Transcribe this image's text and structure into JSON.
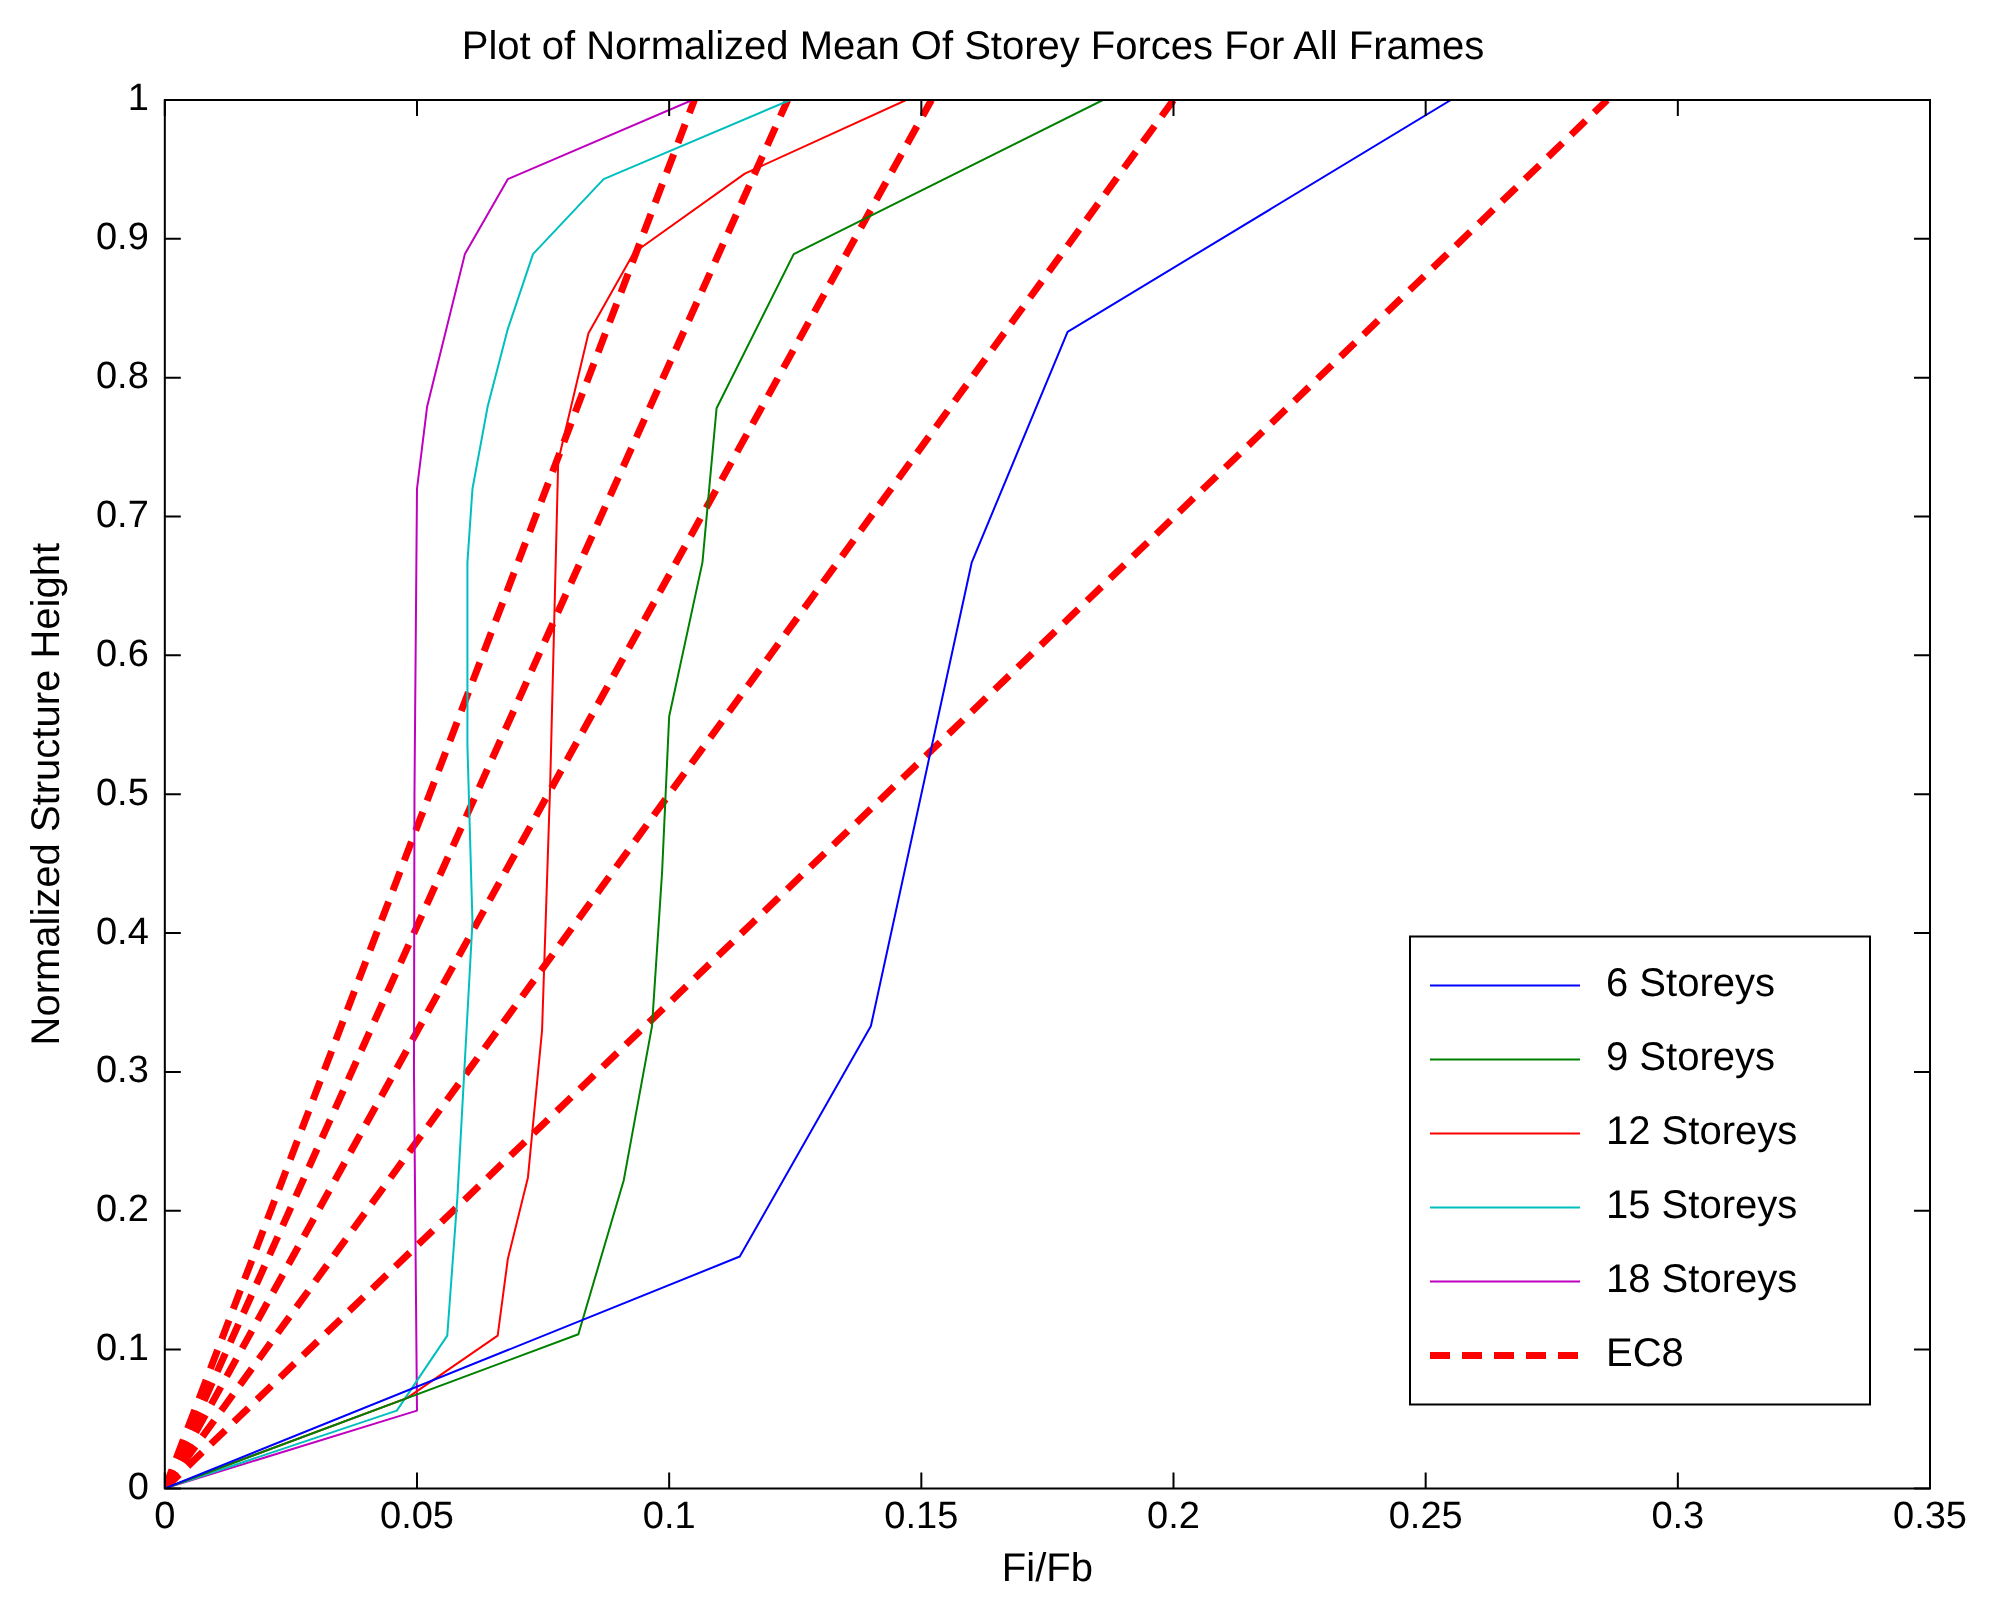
{
  "chart_data": {
    "type": "line",
    "title": "Plot of Normalized Mean Of Storey Forces For All Frames",
    "xlabel": "Fi/Fb",
    "ylabel": "Normalized Structure Height",
    "xlim": [
      0,
      0.35
    ],
    "xticks": [
      0,
      0.05,
      0.1,
      0.15,
      0.2,
      0.25,
      0.3,
      0.35
    ],
    "ylim": [
      0,
      1
    ],
    "yticks": [
      0,
      0.1,
      0.2,
      0.3,
      0.4,
      0.5,
      0.6,
      0.7,
      0.8,
      0.9,
      1
    ],
    "grid": false,
    "legend": "bottom right",
    "marker": "none",
    "series": [
      {
        "name": "6 Storeys",
        "color": "#0000ff",
        "x": [
          0,
          0.114,
          0.14,
          0.16,
          0.179,
          0.255
        ],
        "values": [
          0,
          0.167,
          0.333,
          0.667,
          0.833,
          1
        ]
      },
      {
        "name": "9 Storeys",
        "color": "#008000",
        "x": [
          0,
          0.082,
          0.091,
          0.0966,
          0.0986,
          0.1,
          0.1066,
          0.1094,
          0.1247,
          0.186
        ],
        "values": [
          0,
          0.111,
          0.222,
          0.333,
          0.444,
          0.556,
          0.667,
          0.778,
          0.889,
          1
        ]
      },
      {
        "name": "12 Storeys",
        "color": "#ff0000",
        "x": [
          0,
          0.048,
          0.066,
          0.068,
          0.072,
          0.0748,
          0.0764,
          0.078,
          0.084,
          0.093,
          0.115,
          0.147
        ],
        "values": [
          0,
          0.065,
          0.11,
          0.165,
          0.224,
          0.33,
          0.506,
          0.74,
          0.832,
          0.89,
          0.947,
          1
        ]
      },
      {
        "name": "15 Storeys",
        "color": "#00bfbf",
        "x": [
          0,
          0.046,
          0.056,
          0.058,
          0.061,
          0.06,
          0.06,
          0.061,
          0.064,
          0.068,
          0.073,
          0.087,
          0.124
        ],
        "values": [
          0,
          0.056,
          0.11,
          0.209,
          0.408,
          0.535,
          0.667,
          0.72,
          0.779,
          0.835,
          0.889,
          0.943,
          1
        ]
      },
      {
        "name": "18 Storeys",
        "color": "#bf00bf",
        "x": [
          0,
          0.05,
          0.0494,
          0.0495,
          0.05,
          0.052,
          0.0595,
          0.068,
          0.1046
        ],
        "values": [
          0,
          0.056,
          0.3,
          0.5,
          0.72,
          0.779,
          0.889,
          0.943,
          1
        ]
      },
      {
        "name": "EC8",
        "color": "#ff0000",
        "line_style": "dashed",
        "x": [
          0,
          0.286
        ],
        "values": [
          0,
          1
        ]
      },
      {
        "color": "#ff0000",
        "line_style": "dashed",
        "x": [
          0,
          0.2
        ],
        "values": [
          0,
          1
        ]
      },
      {
        "color": "#ff0000",
        "line_style": "dashed",
        "x": [
          0,
          0.152
        ],
        "values": [
          0,
          1
        ]
      },
      {
        "color": "#ff0000",
        "line_style": "dashed",
        "x": [
          0,
          0.1235
        ],
        "values": [
          0,
          1
        ]
      },
      {
        "color": "#ff0000",
        "line_style": "dashed",
        "x": [
          0,
          0.105
        ],
        "values": [
          0,
          1
        ]
      }
    ]
  }
}
